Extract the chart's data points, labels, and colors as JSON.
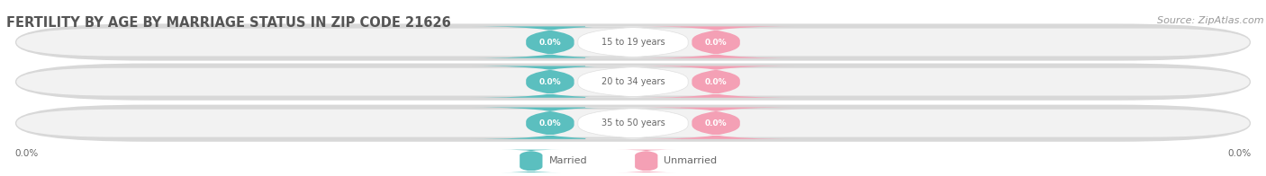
{
  "title": "FERTILITY BY AGE BY MARRIAGE STATUS IN ZIP CODE 21626",
  "source_text": "Source: ZipAtlas.com",
  "categories": [
    "15 to 19 years",
    "20 to 34 years",
    "35 to 50 years"
  ],
  "married_values": [
    "0.0%",
    "0.0%",
    "0.0%"
  ],
  "unmarried_values": [
    "0.0%",
    "0.0%",
    "0.0%"
  ],
  "married_color": "#5bbfbf",
  "unmarried_color": "#f4a0b5",
  "row_bg_color_outer": "#e0e0e0",
  "row_bg_color_inner": "#f0f0f0",
  "label_married": "Married",
  "label_unmarried": "Unmarried",
  "xlim_left_label": "0.0%",
  "xlim_right_label": "0.0%",
  "title_fontsize": 10.5,
  "source_fontsize": 8,
  "background_color": "#ffffff",
  "title_color": "#555555",
  "source_color": "#999999",
  "label_text_color": "#666666",
  "category_text_color": "#666666"
}
